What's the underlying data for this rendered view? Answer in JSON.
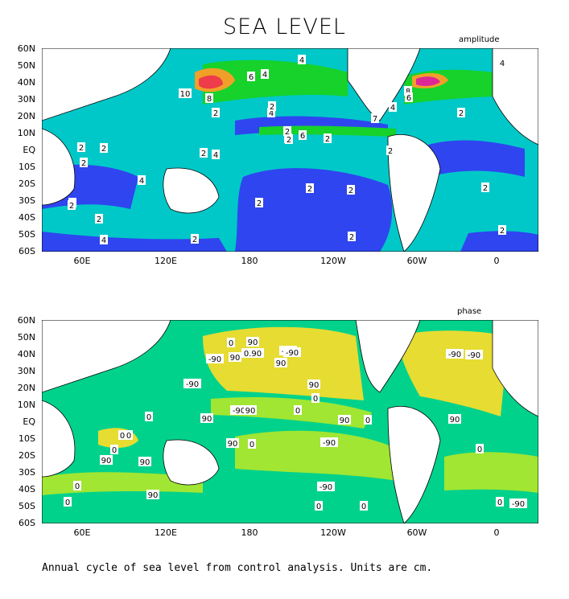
{
  "title": "SEA LEVEL",
  "caption": "Annual cycle of sea level from control analysis. Units are cm.",
  "colors": {
    "deep_blue": "#2f45f0",
    "cyan": "#00c8c8",
    "teal_green": "#00d28c",
    "green": "#16d22a",
    "yellow_green": "#a0e632",
    "yellow": "#e6dc32",
    "orange": "#f0a028",
    "red": "#ee3c4a",
    "magenta": "#dc2896",
    "land": "#ffffff"
  },
  "panels": [
    {
      "name": "amplitude",
      "label": "amplitude",
      "y_ticks": [
        "60N",
        "50N",
        "40N",
        "30N",
        "20N",
        "10N",
        "EQ",
        "10S",
        "20S",
        "30S",
        "40S",
        "50S",
        "60S"
      ],
      "x_ticks": [
        "60E",
        "120E",
        "180",
        "120W",
        "60W",
        "0"
      ],
      "contour_labels": [
        "4",
        "4",
        "6",
        "4",
        "10",
        "8",
        "4",
        "2",
        "4",
        "2",
        "8",
        "6",
        "4",
        "7",
        "2",
        "2",
        "2",
        "2",
        "4",
        "4",
        "4",
        "6",
        "2",
        "2",
        "2",
        "2",
        "2",
        "2",
        "4",
        "2",
        "2",
        "4",
        "2",
        "2",
        "2",
        "2",
        "2",
        "2",
        "2"
      ]
    },
    {
      "name": "phase",
      "label": "phase",
      "y_ticks": [
        "60N",
        "50N",
        "40N",
        "30N",
        "20N",
        "10N",
        "EQ",
        "10S",
        "20S",
        "30S",
        "40S",
        "50S",
        "60S"
      ],
      "x_ticks": [
        "60E",
        "120E",
        "180",
        "120W",
        "60W",
        "0"
      ],
      "contour_labels": [
        "90",
        "0",
        "90",
        "-90",
        "0.90",
        "-90",
        "90",
        "-90",
        "-90",
        "90",
        "0",
        "90",
        "-90",
        "90",
        "0",
        "90",
        "0",
        "-90",
        "90",
        "0",
        "-90",
        "0",
        "90",
        "-90",
        "0",
        "0",
        "90",
        "90",
        "0",
        "0",
        "0",
        "0",
        "0",
        "0",
        "0",
        "0",
        "-90",
        "0",
        "-90",
        "90"
      ]
    }
  ]
}
